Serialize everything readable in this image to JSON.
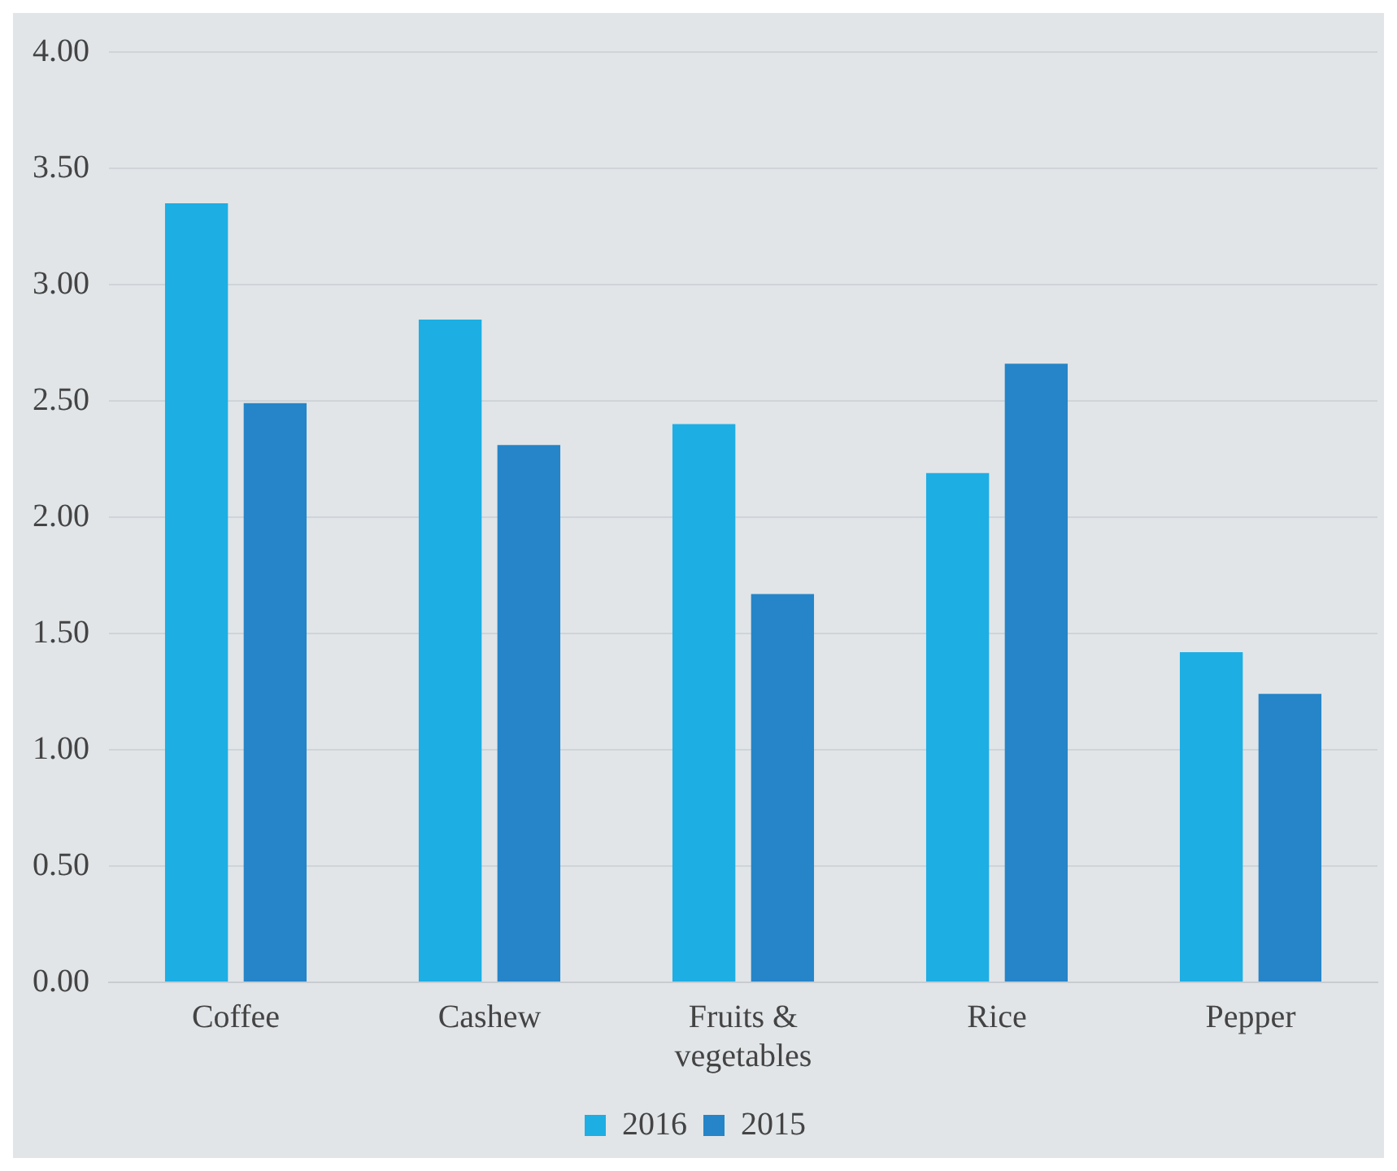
{
  "chart_data": {
    "type": "bar",
    "categories": [
      "Coffee",
      "Cashew",
      "Fruits & vegetables",
      "Rice",
      "Pepper"
    ],
    "series": [
      {
        "name": "2016",
        "color": "#1daee4",
        "values": [
          3.35,
          2.85,
          2.4,
          2.19,
          1.42
        ]
      },
      {
        "name": "2015",
        "color": "#2585c8",
        "values": [
          2.49,
          2.31,
          1.67,
          2.66,
          1.24
        ]
      }
    ],
    "ylim": [
      0,
      4
    ],
    "yticks": [
      {
        "value": 0,
        "label": "0.00"
      },
      {
        "value": 0.5,
        "label": "0.50"
      },
      {
        "value": 1,
        "label": "1.00"
      },
      {
        "value": 1.5,
        "label": "1.50"
      },
      {
        "value": 2,
        "label": "2.00"
      },
      {
        "value": 2.5,
        "label": "2.50"
      },
      {
        "value": 3,
        "label": "3.00"
      },
      {
        "value": 3.5,
        "label": "3.50"
      },
      {
        "value": 4,
        "label": "4.00"
      }
    ],
    "grid": "y",
    "legend": "bottom"
  }
}
